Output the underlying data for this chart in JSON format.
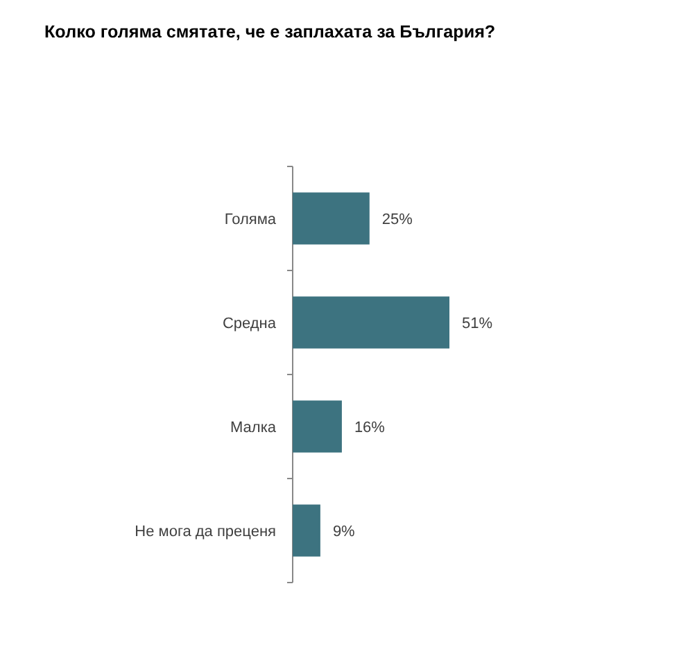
{
  "chart_data": {
    "type": "bar",
    "orientation": "horizontal",
    "title": "Колко голяма смятате, че е заплахата за България?",
    "categories": [
      "Голяма",
      "Средна",
      "Малка",
      "Не мога да преценя"
    ],
    "values": [
      25,
      51,
      16,
      9
    ],
    "color": "#3d7380",
    "value_labels": [
      "25%",
      "51%",
      "16%",
      "9%"
    ]
  }
}
